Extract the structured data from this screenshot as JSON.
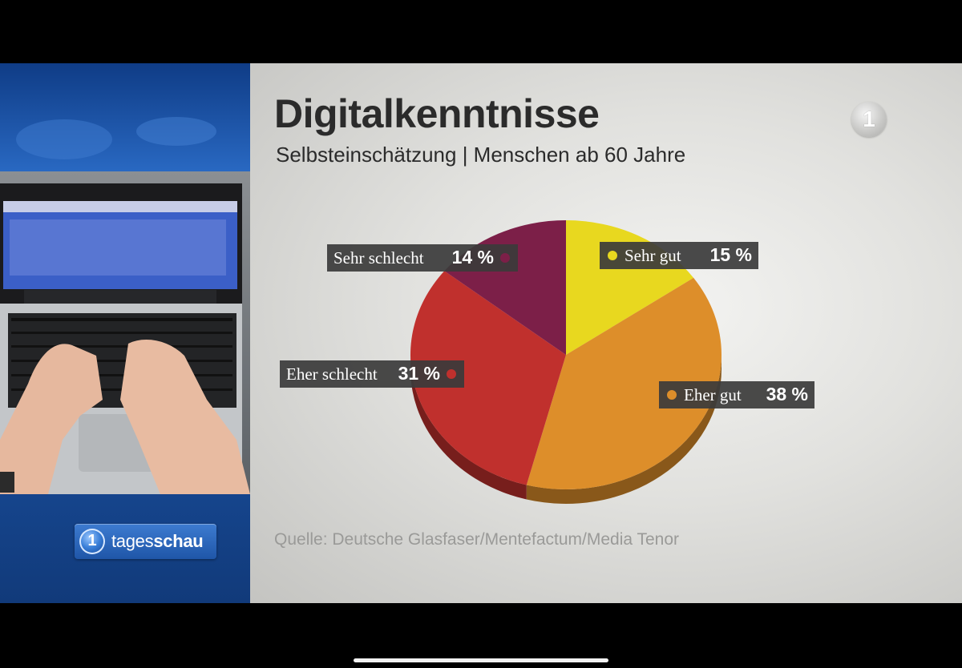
{
  "title": "Digitalkenntnisse",
  "subtitle": "Selbsteinschätzung | Menschen ab 60 Jahre",
  "source": "Quelle: Deutsche Glasfaser/Mentefactum/Media Tenor",
  "brand": {
    "name_prefix": "tages",
    "name_bold": "schau",
    "logo_glyph": "1"
  },
  "channel_logo": {
    "glyph": "1",
    "icon": "ard-das-erste-logo"
  },
  "colors": {
    "sehr_gut": "#e8d81f",
    "eher_gut": "#dd8e2a",
    "eher_schlecht": "#c0302d",
    "sehr_schlecht": "#7c1f48",
    "label_bg": "#3b3b3b"
  },
  "chart_data": {
    "type": "pie",
    "title": "Digitalkenntnisse",
    "subtitle": "Selbsteinschätzung | Menschen ab 60 Jahre",
    "unit": "%",
    "slices": [
      {
        "label": "Sehr gut",
        "value": 15,
        "display": "15 %",
        "color": "#e8d81f"
      },
      {
        "label": "Eher gut",
        "value": 38,
        "display": "38 %",
        "color": "#dd8e2a"
      },
      {
        "label": "Eher schlecht",
        "value": 31,
        "display": "31 %",
        "color": "#c0302d"
      },
      {
        "label": "Sehr schlecht",
        "value": 14,
        "display": "14 %",
        "color": "#7c1f48"
      }
    ]
  }
}
